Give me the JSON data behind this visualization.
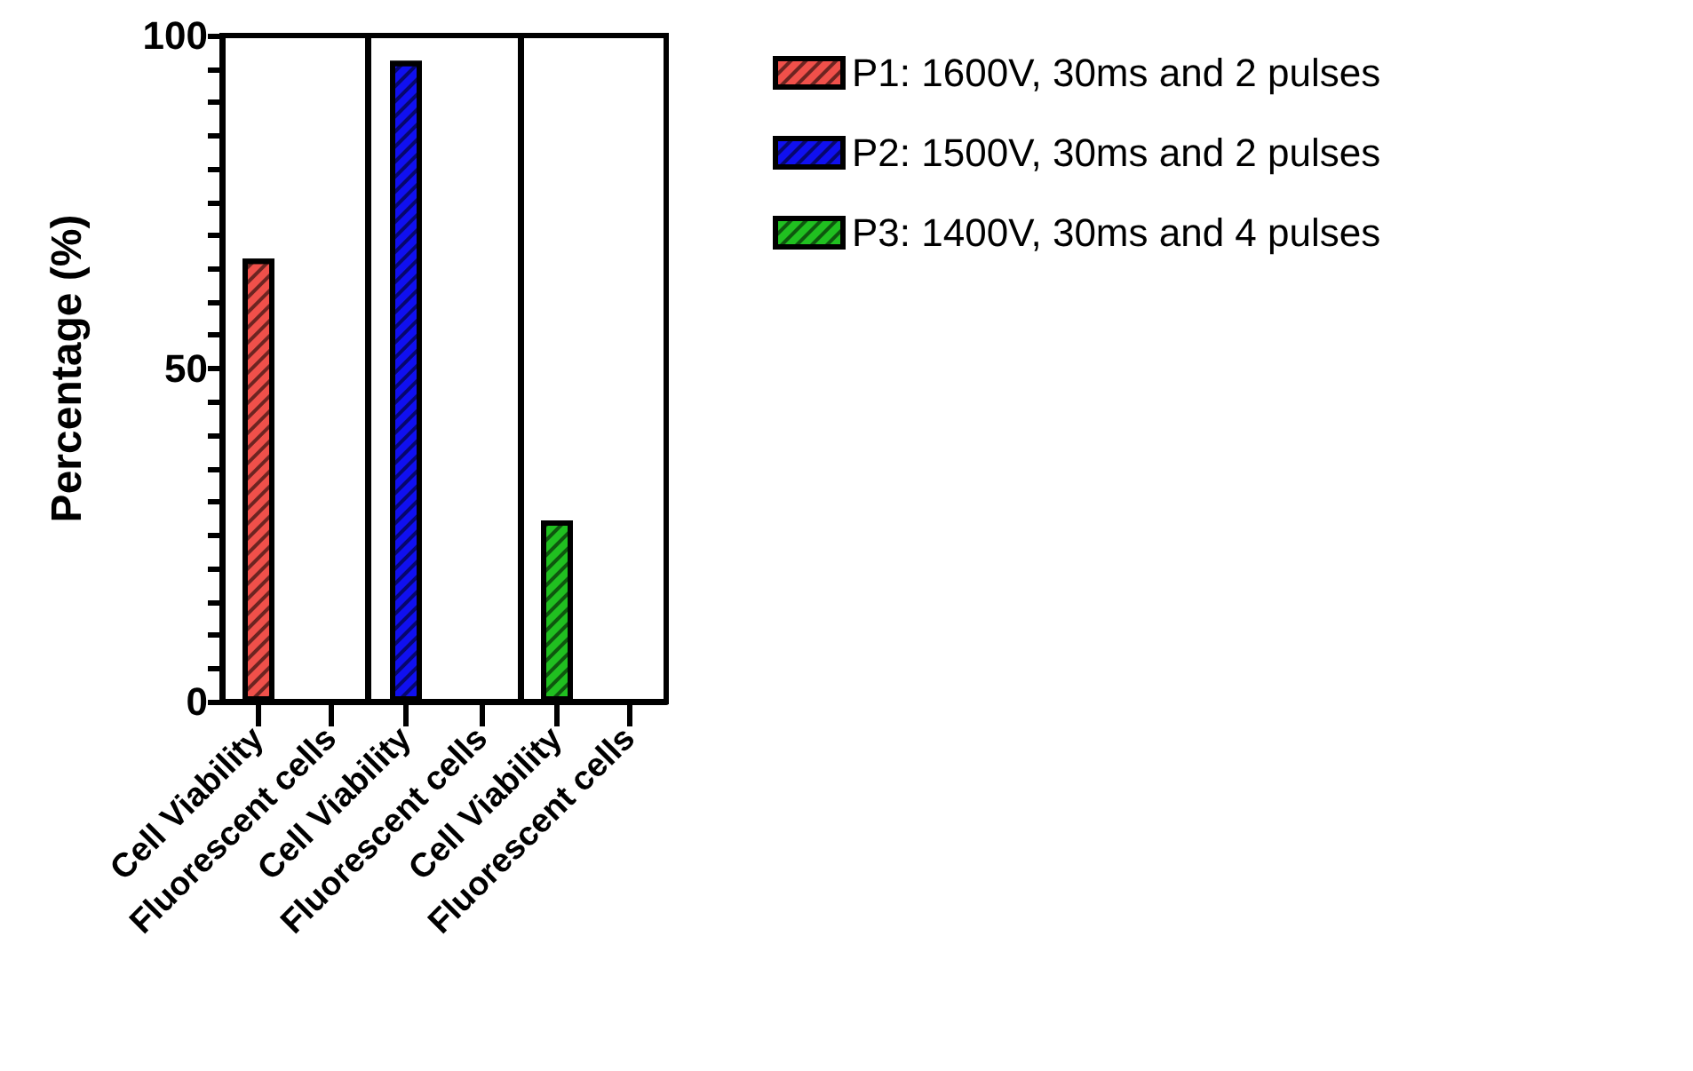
{
  "chart_data": [
    {
      "type": "bar",
      "ylabel": "Percentage (%)",
      "categories": [
        "Cell Viability",
        "Fluorescent cells"
      ],
      "series": [
        {
          "name": "P1: 1600V, 30ms and 2 pulses",
          "color": "#f0504a",
          "values": [
            66.5,
            null
          ]
        }
      ],
      "ylim": [
        0,
        100
      ],
      "yticks": [
        0,
        {
          "value": 5,
          "label": null
        },
        {
          "value": 10,
          "label": null
        },
        {
          "value": 15,
          "label": null
        },
        {
          "value": 20,
          "label": null
        },
        {
          "value": 25,
          "label": null
        },
        {
          "value": 30,
          "label": null
        },
        {
          "value": 35,
          "label": null
        },
        {
          "value": 40,
          "label": null
        },
        {
          "value": 45,
          "label": null
        },
        50,
        {
          "value": 55,
          "label": null
        },
        {
          "value": 60,
          "label": null
        },
        {
          "value": 65,
          "label": null
        },
        {
          "value": 70,
          "label": null
        },
        {
          "value": 75,
          "label": null
        },
        {
          "value": 80,
          "label": null
        },
        {
          "value": 85,
          "label": null
        },
        {
          "value": 90,
          "label": null
        },
        {
          "value": 95,
          "label": null
        },
        100
      ],
      "legend": "right"
    },
    {
      "type": "bar",
      "categories": [
        "Cell Viability",
        "Fluorescent cells"
      ],
      "series": [
        {
          "name": "P2: 1500V, 30ms and 2 pulses",
          "color": "#1010f0",
          "values": [
            96.2,
            null
          ]
        }
      ],
      "ylim": [
        0,
        100
      ],
      "tick_labels": "x",
      "legend": "right"
    },
    {
      "type": "bar",
      "categories": [
        "Cell Viability",
        "Fluorescent cells"
      ],
      "series": [
        {
          "name": "P3: 1400V, 30ms and 4 pulses",
          "color": "#20c020",
          "values": [
            27.2,
            null
          ]
        }
      ],
      "ylim": [
        0,
        100
      ],
      "tick_labels": "x",
      "legend": "right"
    }
  ]
}
